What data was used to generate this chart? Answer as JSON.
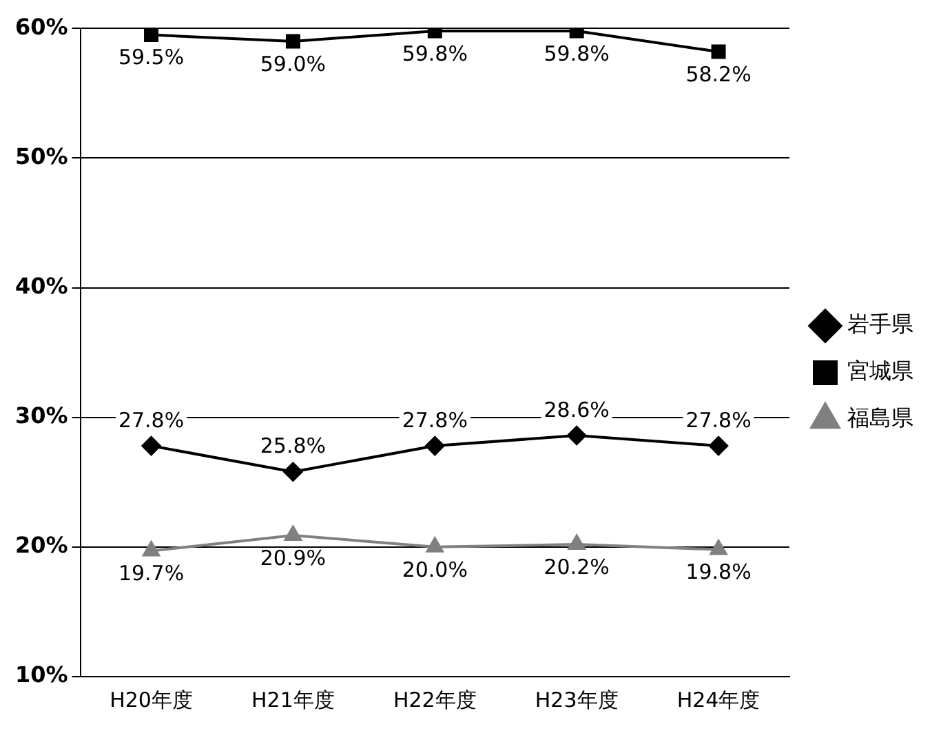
{
  "chart_data": {
    "type": "line",
    "categories": [
      "H20年度",
      "H21年度",
      "H22年度",
      "H23年度",
      "H24年度"
    ],
    "series": [
      {
        "name": "岩手県",
        "color": "#000000",
        "marker": "diamond",
        "values": [
          27.8,
          25.8,
          27.8,
          28.6,
          27.8
        ],
        "value_labels": [
          "27.8%",
          "25.8%",
          "27.8%",
          "28.6%",
          "27.8%"
        ]
      },
      {
        "name": "宮城県",
        "color": "#000000",
        "marker": "square",
        "values": [
          59.5,
          59.0,
          59.8,
          59.8,
          58.2
        ],
        "value_labels": [
          "59.5%",
          "59.0%",
          "59.8%",
          "59.8%",
          "58.2%"
        ]
      },
      {
        "name": "福島県",
        "color": "#808080",
        "marker": "triangle",
        "values": [
          19.7,
          20.9,
          20.0,
          20.2,
          19.8
        ],
        "value_labels": [
          "19.7%",
          "20.9%",
          "20.0%",
          "20.2%",
          "19.8%"
        ]
      }
    ],
    "ylim": [
      10,
      60
    ],
    "yticks": [
      {
        "value": 10,
        "label": "10%"
      },
      {
        "value": 20,
        "label": "20%"
      },
      {
        "value": 30,
        "label": "30%"
      },
      {
        "value": 40,
        "label": "40%"
      },
      {
        "value": 50,
        "label": "50%"
      },
      {
        "value": 60,
        "label": "60%"
      }
    ],
    "grid": "y",
    "legend": "right",
    "line_style": "solid"
  }
}
